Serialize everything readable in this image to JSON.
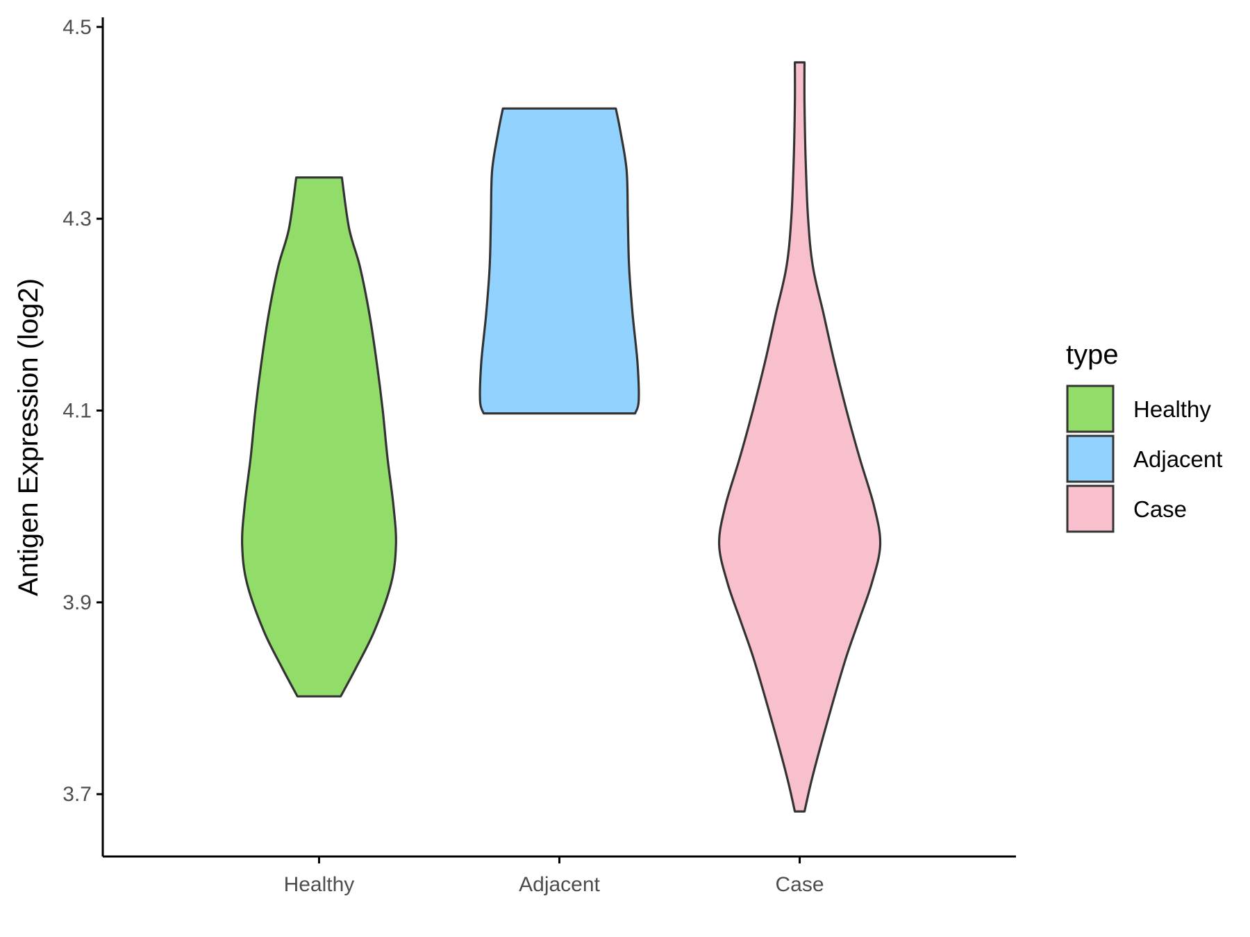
{
  "chart_data": {
    "type": "violin",
    "title": "",
    "xlabel": "",
    "ylabel": "Antigen Expression (log2)",
    "ylim": [
      3.635,
      4.51
    ],
    "yticks": [
      "3.7",
      "3.9",
      "4.1",
      "4.3",
      "4.5"
    ],
    "grid": false,
    "legend": {
      "title": "type",
      "placement": "right",
      "entries": [
        "Healthy",
        "Adjacent",
        "Case"
      ]
    },
    "categories": [
      "Healthy",
      "Adjacent",
      "Case"
    ],
    "series": [
      {
        "name": "Healthy",
        "color": "#92dc6a",
        "ymin": 3.802,
        "ymax": 4.343,
        "profile": [
          [
            3.802,
            0.09
          ],
          [
            3.83,
            0.15
          ],
          [
            3.87,
            0.23
          ],
          [
            3.92,
            0.3
          ],
          [
            3.96,
            0.32
          ],
          [
            4.0,
            0.31
          ],
          [
            4.05,
            0.285
          ],
          [
            4.1,
            0.265
          ],
          [
            4.15,
            0.24
          ],
          [
            4.2,
            0.21
          ],
          [
            4.25,
            0.17
          ],
          [
            4.29,
            0.125
          ],
          [
            4.343,
            0.095
          ]
        ]
      },
      {
        "name": "Adjacent",
        "color": "#92d2ff",
        "ymin": 4.097,
        "ymax": 4.415,
        "profile": [
          [
            4.097,
            0.315
          ],
          [
            4.11,
            0.33
          ],
          [
            4.15,
            0.325
          ],
          [
            4.2,
            0.305
          ],
          [
            4.25,
            0.29
          ],
          [
            4.3,
            0.285
          ],
          [
            4.35,
            0.28
          ],
          [
            4.39,
            0.255
          ],
          [
            4.415,
            0.235
          ]
        ]
      },
      {
        "name": "Case",
        "color": "#f7c0cc",
        "ymin": 3.682,
        "ymax": 4.463,
        "profile": [
          [
            3.682,
            0.02
          ],
          [
            3.72,
            0.055
          ],
          [
            3.78,
            0.12
          ],
          [
            3.84,
            0.19
          ],
          [
            3.88,
            0.245
          ],
          [
            3.92,
            0.3
          ],
          [
            3.96,
            0.335
          ],
          [
            4.0,
            0.31
          ],
          [
            4.05,
            0.25
          ],
          [
            4.1,
            0.195
          ],
          [
            4.15,
            0.145
          ],
          [
            4.2,
            0.1
          ],
          [
            4.25,
            0.055
          ],
          [
            4.3,
            0.035
          ],
          [
            4.36,
            0.025
          ],
          [
            4.42,
            0.02
          ],
          [
            4.463,
            0.02
          ]
        ]
      }
    ]
  }
}
